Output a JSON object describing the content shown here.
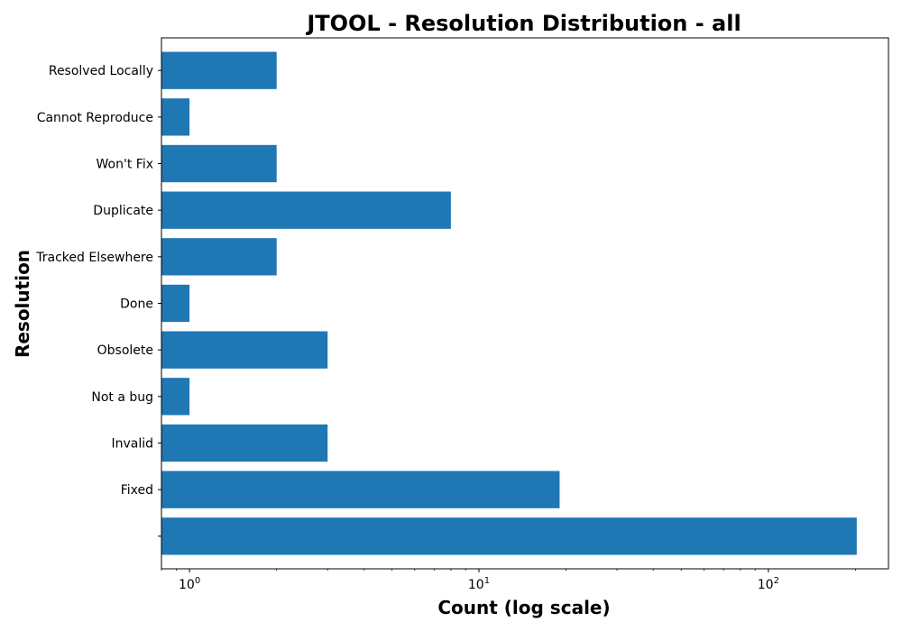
{
  "chart_data": {
    "type": "bar",
    "orientation": "horizontal",
    "title": "JTOOL - Resolution Distribution - all",
    "xlabel": "Count (log scale)",
    "ylabel": "Resolution",
    "x_scale": "log",
    "xlim": [
      0.8,
      260
    ],
    "x_ticks": [
      {
        "value": 1,
        "base": "10",
        "exp": "0"
      },
      {
        "value": 10,
        "base": "10",
        "exp": "1"
      },
      {
        "value": 100,
        "base": "10",
        "exp": "2"
      }
    ],
    "categories": [
      "",
      "Fixed",
      "Invalid",
      "Not a bug",
      "Obsolete",
      "Done",
      "Tracked Elsewhere",
      "Duplicate",
      "Won't Fix",
      "Cannot Reproduce",
      "Resolved Locally"
    ],
    "values": [
      202,
      19,
      3,
      1,
      3,
      1,
      2,
      8,
      2,
      1,
      2
    ],
    "bar_color": "#1f77b4",
    "grid": false,
    "legend": "none"
  }
}
